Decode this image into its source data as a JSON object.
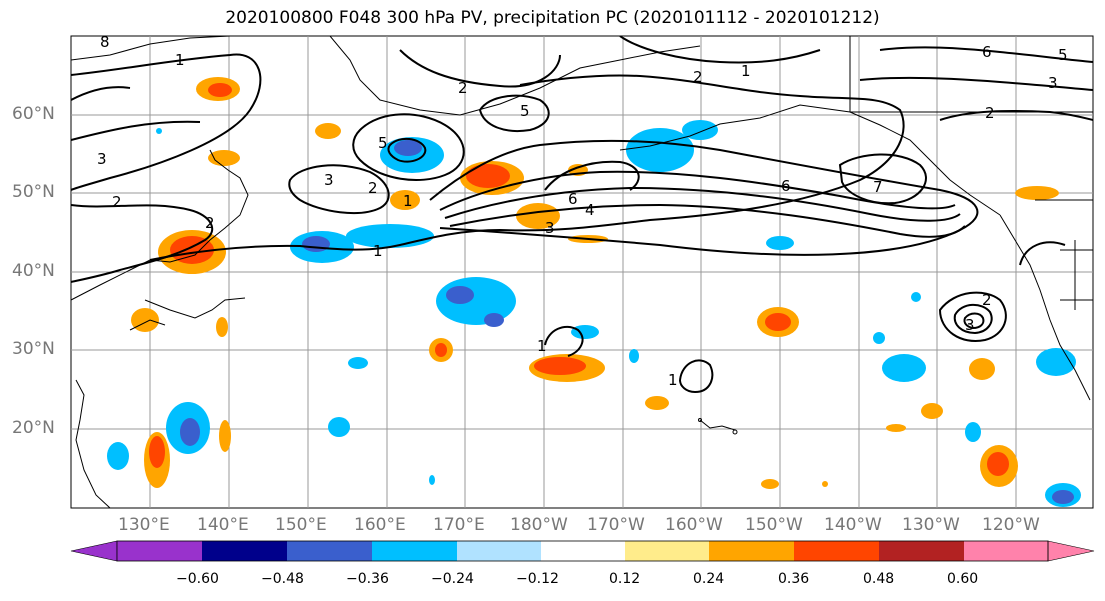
{
  "title": "2020100800 F048 300 hPa PV, precipitation PC (2020101112 - 2020101212)",
  "map": {
    "lat_labels": [
      "60°N",
      "50°N",
      "40°N",
      "30°N",
      "20°N"
    ],
    "lon_labels": [
      "130°E",
      "140°E",
      "150°E",
      "160°E",
      "170°E",
      "180°W",
      "170°W",
      "160°W",
      "150°W",
      "140°W",
      "130°W",
      "120°W"
    ],
    "contour_labels": [
      "8",
      "1",
      "2",
      "5",
      "3",
      "6",
      "4",
      "7"
    ],
    "pv_contour_color": "#000000"
  },
  "colorbar": {
    "colors": [
      "#9932cc",
      "#00008b",
      "#3a5fcd",
      "#00bfff",
      "#b0e2ff",
      "#ffffff",
      "#ffec8b",
      "#ffa500",
      "#ff4500",
      "#b22222",
      "#ff82ab"
    ],
    "tick_labels": [
      "−0.60",
      "−0.48",
      "−0.36",
      "−0.24",
      "−0.12",
      "0.12",
      "0.24",
      "0.36",
      "0.48",
      "0.60"
    ]
  }
}
